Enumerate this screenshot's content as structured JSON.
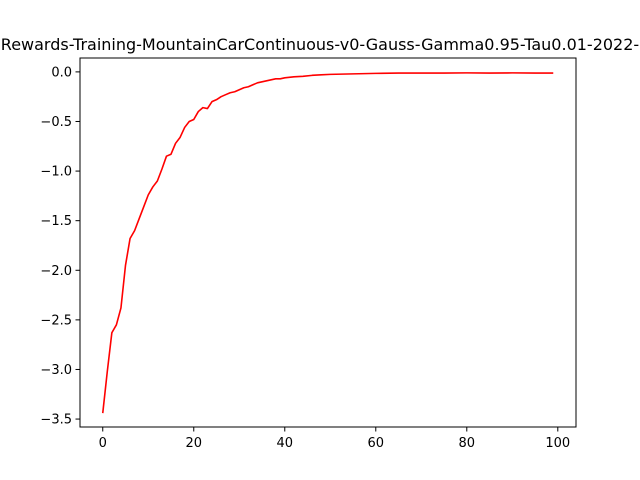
{
  "chart_data": {
    "type": "line",
    "title": "Rewards-Training-MountainCarContinuous-v0-Gauss-Gamma0.95-Tau0.01-2022-",
    "xlabel": "",
    "ylabel": "",
    "xlim": [
      -5,
      104
    ],
    "ylim": [
      -3.58,
      0.14
    ],
    "xticks": [
      0,
      20,
      40,
      60,
      80,
      100
    ],
    "xtick_labels": [
      "0",
      "20",
      "40",
      "60",
      "80",
      "100"
    ],
    "yticks": [
      0.0,
      -0.5,
      -1.0,
      -1.5,
      -2.0,
      -2.5,
      -3.0,
      -3.5
    ],
    "ytick_labels": [
      "0.0",
      "−0.5",
      "−1.0",
      "−1.5",
      "−2.0",
      "−2.5",
      "−3.0",
      "−3.5"
    ],
    "grid": false,
    "series": [
      {
        "color": "#ff0000",
        "x": [
          0,
          1,
          2,
          3,
          4,
          5,
          6,
          7,
          8,
          9,
          10,
          11,
          12,
          13,
          14,
          15,
          16,
          17,
          18,
          19,
          20,
          21,
          22,
          23,
          24,
          25,
          26,
          27,
          28,
          29,
          30,
          31,
          32,
          33,
          34,
          35,
          36,
          37,
          38,
          39,
          40,
          42,
          44,
          46,
          48,
          50,
          55,
          60,
          65,
          70,
          75,
          80,
          85,
          90,
          95,
          99
        ],
        "y": [
          -3.44,
          -3.02,
          -2.63,
          -2.55,
          -2.38,
          -1.95,
          -1.68,
          -1.6,
          -1.48,
          -1.36,
          -1.24,
          -1.16,
          -1.1,
          -0.98,
          -0.85,
          -0.83,
          -0.72,
          -0.66,
          -0.56,
          -0.5,
          -0.48,
          -0.4,
          -0.36,
          -0.37,
          -0.3,
          -0.28,
          -0.25,
          -0.23,
          -0.21,
          -0.2,
          -0.18,
          -0.16,
          -0.15,
          -0.13,
          -0.11,
          -0.1,
          -0.09,
          -0.08,
          -0.07,
          -0.07,
          -0.06,
          -0.05,
          -0.045,
          -0.035,
          -0.03,
          -0.025,
          -0.02,
          -0.015,
          -0.012,
          -0.012,
          -0.012,
          -0.01,
          -0.012,
          -0.01,
          -0.012,
          -0.012
        ]
      }
    ]
  }
}
